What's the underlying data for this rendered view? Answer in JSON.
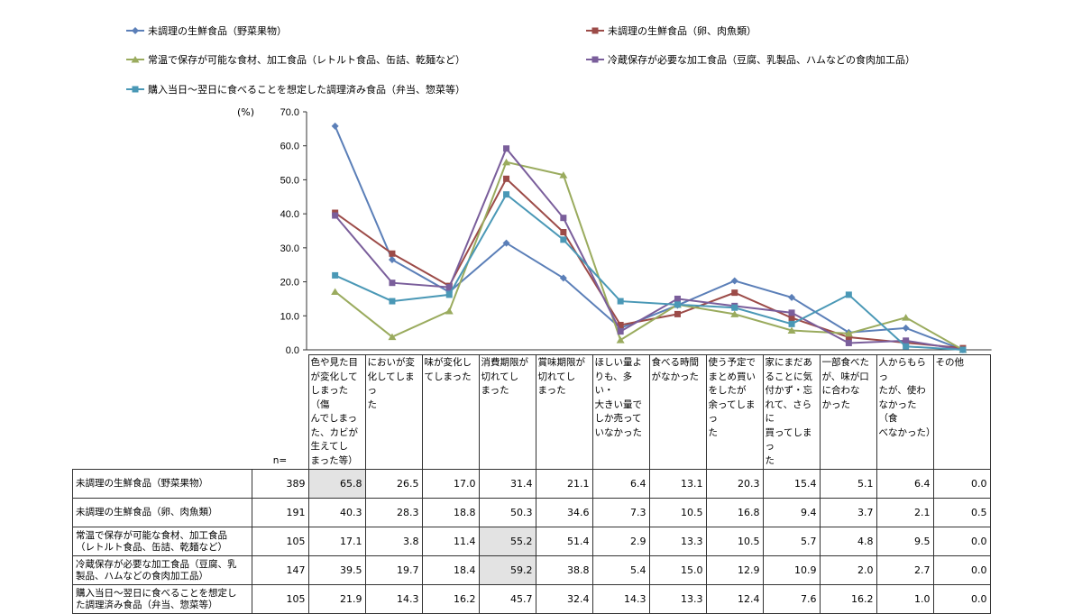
{
  "chart_data": {
    "type": "line",
    "ylabel": "(%)",
    "ylim": [
      0,
      70
    ],
    "yticks": [
      "0.0",
      "10.0",
      "20.0",
      "30.0",
      "40.0",
      "50.0",
      "60.0",
      "70.0"
    ],
    "n_label": "n=",
    "categories": [
      "色や見た目が変化してしまった（傷んでしまった、カビが生えてしまった等）",
      "においが変化してしまった",
      "味が変化してしまった",
      "消費期限が切れてしまった",
      "賞味期限が切れてしまった",
      "ほしい量よりも、多い・大きい量でしか売っていなかった",
      "食べる時間がなかった",
      "使う予定でまとめ買いをしたが余ってしまった",
      "家にまだあることに気付かず・忘れて、さらに買ってしまった",
      "一部食べたが、味が口に合わなかった",
      "人からもらったが、使わなかった（食べなかった）",
      "その他"
    ],
    "series": [
      {
        "name": "未調理の生鮮食品（野菜果物）",
        "n": "389",
        "color": "#5b7fb8",
        "marker": "diamond",
        "values": [
          65.8,
          26.5,
          17.0,
          31.4,
          21.1,
          6.4,
          13.1,
          20.3,
          15.4,
          5.1,
          6.4,
          0.0
        ],
        "labels": [
          "65.8",
          "26.5",
          "17.0",
          "31.4",
          "21.1",
          "6.4",
          "13.1",
          "20.3",
          "15.4",
          "5.1",
          "6.4",
          "0.0"
        ],
        "highlight": [
          0
        ]
      },
      {
        "name": "未調理の生鮮食品（卵、肉魚類）",
        "n": "191",
        "color": "#9c4b48",
        "marker": "square",
        "values": [
          40.3,
          28.3,
          18.8,
          50.3,
          34.6,
          7.3,
          10.5,
          16.8,
          9.4,
          3.7,
          2.1,
          0.5
        ],
        "labels": [
          "40.3",
          "28.3",
          "18.8",
          "50.3",
          "34.6",
          "7.3",
          "10.5",
          "16.8",
          "9.4",
          "3.7",
          "2.1",
          "0.5"
        ],
        "highlight": []
      },
      {
        "name": "常温で保存が可能な食材、加工食品（レトルト食品、缶詰、乾麺など）",
        "n": "105",
        "color": "#9aab5e",
        "marker": "triangle",
        "values": [
          17.1,
          3.8,
          11.4,
          55.2,
          51.4,
          2.9,
          13.3,
          10.5,
          5.7,
          4.8,
          9.5,
          0.0
        ],
        "labels": [
          "17.1",
          "3.8",
          "11.4",
          "55.2",
          "51.4",
          "2.9",
          "13.3",
          "10.5",
          "5.7",
          "4.8",
          "9.5",
          "0.0"
        ],
        "highlight": [
          3
        ]
      },
      {
        "name": "冷蔵保存が必要な加工食品（豆腐、乳製品、ハムなどの食肉加工品）",
        "n": "147",
        "color": "#7a5e9b",
        "marker": "square",
        "values": [
          39.5,
          19.7,
          18.4,
          59.2,
          38.8,
          5.4,
          15.0,
          12.9,
          10.9,
          2.0,
          2.7,
          0.0
        ],
        "labels": [
          "39.5",
          "19.7",
          "18.4",
          "59.2",
          "38.8",
          "5.4",
          "15.0",
          "12.9",
          "10.9",
          "2.0",
          "2.7",
          "0.0"
        ],
        "highlight": [
          3
        ]
      },
      {
        "name": "購入当日～翌日に食べることを想定した調理済み食品（弁当、惣菜等）",
        "n": "105",
        "color": "#4a98b6",
        "marker": "square",
        "values": [
          21.9,
          14.3,
          16.2,
          45.7,
          32.4,
          14.3,
          13.3,
          12.4,
          7.6,
          16.2,
          1.0,
          0.0
        ],
        "labels": [
          "21.9",
          "14.3",
          "16.2",
          "45.7",
          "32.4",
          "14.3",
          "13.3",
          "12.4",
          "7.6",
          "16.2",
          "1.0",
          "0.0"
        ],
        "highlight": []
      }
    ],
    "table_row_labels": [
      "未調理の生鮮食品（野菜果物）",
      "未調理の生鮮食品（卵、肉魚類）",
      "常温で保存が可能な食材、加工食品\n（レトルト食品、缶詰、乾麺など）",
      "冷蔵保存が必要な加工食品（豆腐、乳\n製品、ハムなどの食肉加工品）",
      "購入当日～翌日に食べることを想定し\nた調理済み食品（弁当、惣菜等）"
    ],
    "table_headers": [
      "色や見た目\nが変化して\nしまった（傷\nんでしまっ\nた、カビが\n生えてし\nまった等）",
      "においが変\n化してしまっ\nた",
      "味が変化し\nてしまった",
      "消費期限が\n切れてし\nまった",
      "賞味期限が\n切れてし\nまった",
      "ほしい量よ\nりも、多い・\n大きい量で\nしか売って\nいなかった",
      "食べる時間\nがなかった",
      "使う予定で\nまとめ買い\nをしたが\n余ってしまっ\nた",
      "家にまだあ\nることに気\n付かず・忘\nれて、さらに\n買ってしまっ\nた",
      "一部食べた\nが、味が口\nに合わな\nかった",
      "人からもらっ\nたが、使わ\nなかった（食\nべなかった）",
      "その他"
    ]
  }
}
